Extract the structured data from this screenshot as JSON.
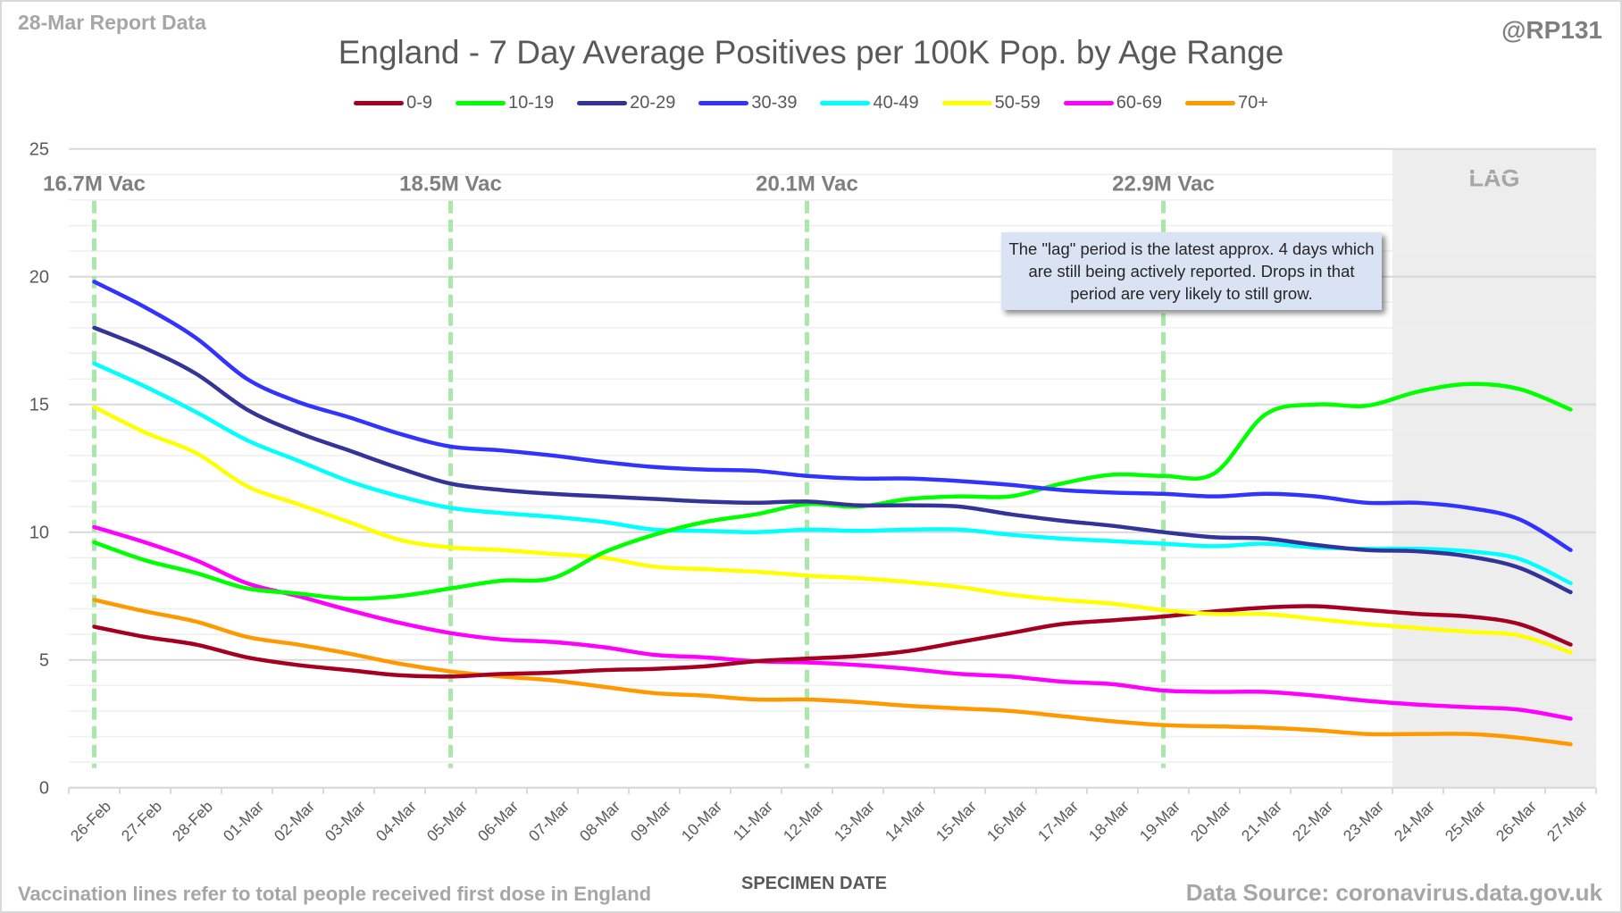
{
  "header": {
    "report_label": "28-Mar Report Data",
    "handle": "@RP131"
  },
  "footer": {
    "vaccination_note": "Vaccination lines refer to total people received first dose in England",
    "data_source": "Data Source: coronavirus.data.gov.uk"
  },
  "callout": {
    "text": "The \"lag\" period is the latest approx. 4 days which are still being actively reported.  Drops in that period are very likely to still grow."
  },
  "chart_data": {
    "type": "line",
    "title": "England - 7 Day Average Positives per 100K Pop. by Age Range",
    "xlabel": "SPECIMEN DATE",
    "ylabel": "",
    "ylim": [
      0,
      25
    ],
    "yticks": [
      0,
      5,
      10,
      15,
      20,
      25
    ],
    "grid": true,
    "legend_position": "top",
    "categories": [
      "26-Feb",
      "27-Feb",
      "28-Feb",
      "01-Mar",
      "02-Mar",
      "03-Mar",
      "04-Mar",
      "05-Mar",
      "06-Mar",
      "07-Mar",
      "08-Mar",
      "09-Mar",
      "10-Mar",
      "11-Mar",
      "12-Mar",
      "13-Mar",
      "14-Mar",
      "15-Mar",
      "16-Mar",
      "17-Mar",
      "18-Mar",
      "19-Mar",
      "20-Mar",
      "21-Mar",
      "22-Mar",
      "23-Mar",
      "24-Mar",
      "25-Mar",
      "26-Mar",
      "27-Mar"
    ],
    "series": [
      {
        "name": "0-9",
        "color": "#a50021",
        "values": [
          6.3,
          5.9,
          5.6,
          5.1,
          4.8,
          4.6,
          4.4,
          4.35,
          4.45,
          4.5,
          4.6,
          4.65,
          4.75,
          4.95,
          5.05,
          5.15,
          5.35,
          5.7,
          6.05,
          6.4,
          6.55,
          6.7,
          6.9,
          7.05,
          7.1,
          6.95,
          6.8,
          6.7,
          6.4,
          5.6
        ]
      },
      {
        "name": "10-19",
        "color": "#00ff00",
        "values": [
          9.6,
          8.9,
          8.4,
          7.8,
          7.6,
          7.4,
          7.5,
          7.8,
          8.1,
          8.2,
          9.2,
          9.9,
          10.4,
          10.7,
          11.1,
          11.0,
          11.3,
          11.4,
          11.4,
          11.9,
          12.25,
          12.2,
          12.3,
          14.6,
          15.0,
          14.95,
          15.5,
          15.8,
          15.6,
          14.8
        ]
      },
      {
        "name": "20-29",
        "color": "#333399",
        "values": [
          18.0,
          17.2,
          16.2,
          14.8,
          13.9,
          13.2,
          12.5,
          11.9,
          11.65,
          11.5,
          11.4,
          11.3,
          11.2,
          11.15,
          11.2,
          11.05,
          11.05,
          11.0,
          10.7,
          10.45,
          10.25,
          10.0,
          9.8,
          9.75,
          9.5,
          9.3,
          9.25,
          9.05,
          8.6,
          7.65
        ]
      },
      {
        "name": "30-39",
        "color": "#3333ff",
        "values": [
          19.8,
          18.8,
          17.6,
          16.0,
          15.1,
          14.5,
          13.85,
          13.35,
          13.2,
          13.0,
          12.75,
          12.55,
          12.45,
          12.4,
          12.2,
          12.1,
          12.1,
          12.0,
          11.85,
          11.65,
          11.55,
          11.5,
          11.4,
          11.5,
          11.4,
          11.15,
          11.15,
          10.95,
          10.5,
          9.3
        ]
      },
      {
        "name": "40-49",
        "color": "#00ffff",
        "values": [
          16.6,
          15.7,
          14.7,
          13.6,
          12.8,
          12.0,
          11.4,
          10.95,
          10.75,
          10.6,
          10.4,
          10.1,
          10.05,
          10.0,
          10.1,
          10.05,
          10.1,
          10.1,
          9.9,
          9.75,
          9.65,
          9.55,
          9.45,
          9.55,
          9.4,
          9.35,
          9.35,
          9.25,
          8.95,
          8.0
        ]
      },
      {
        "name": "50-59",
        "color": "#ffff00",
        "values": [
          14.9,
          13.9,
          13.1,
          11.8,
          11.1,
          10.4,
          9.7,
          9.4,
          9.3,
          9.15,
          9.0,
          8.65,
          8.55,
          8.45,
          8.3,
          8.2,
          8.05,
          7.85,
          7.55,
          7.35,
          7.2,
          6.95,
          6.8,
          6.8,
          6.6,
          6.4,
          6.25,
          6.1,
          5.95,
          5.3
        ]
      },
      {
        "name": "60-69",
        "color": "#ff00ff",
        "values": [
          10.2,
          9.6,
          8.9,
          8.0,
          7.5,
          6.95,
          6.45,
          6.05,
          5.8,
          5.7,
          5.5,
          5.2,
          5.1,
          4.95,
          4.9,
          4.8,
          4.65,
          4.45,
          4.35,
          4.15,
          4.05,
          3.8,
          3.75,
          3.75,
          3.6,
          3.4,
          3.25,
          3.15,
          3.05,
          2.7
        ]
      },
      {
        "name": "70+",
        "color": "#ff9900",
        "values": [
          7.35,
          6.9,
          6.5,
          5.9,
          5.6,
          5.25,
          4.85,
          4.55,
          4.35,
          4.2,
          3.95,
          3.7,
          3.6,
          3.45,
          3.45,
          3.35,
          3.2,
          3.1,
          3.0,
          2.8,
          2.6,
          2.45,
          2.4,
          2.35,
          2.25,
          2.1,
          2.1,
          2.1,
          1.95,
          1.7
        ]
      }
    ],
    "annotations": {
      "vaccination_lines": [
        {
          "category": "26-Feb",
          "label": "16.7M Vac"
        },
        {
          "category": "05-Mar",
          "label": "18.5M Vac"
        },
        {
          "category": "12-Mar",
          "label": "20.1M Vac"
        },
        {
          "category": "19-Mar",
          "label": "22.9M Vac"
        }
      ],
      "lag_region": {
        "from": "24-Mar",
        "to": "27-Mar",
        "label": "LAG"
      }
    }
  }
}
